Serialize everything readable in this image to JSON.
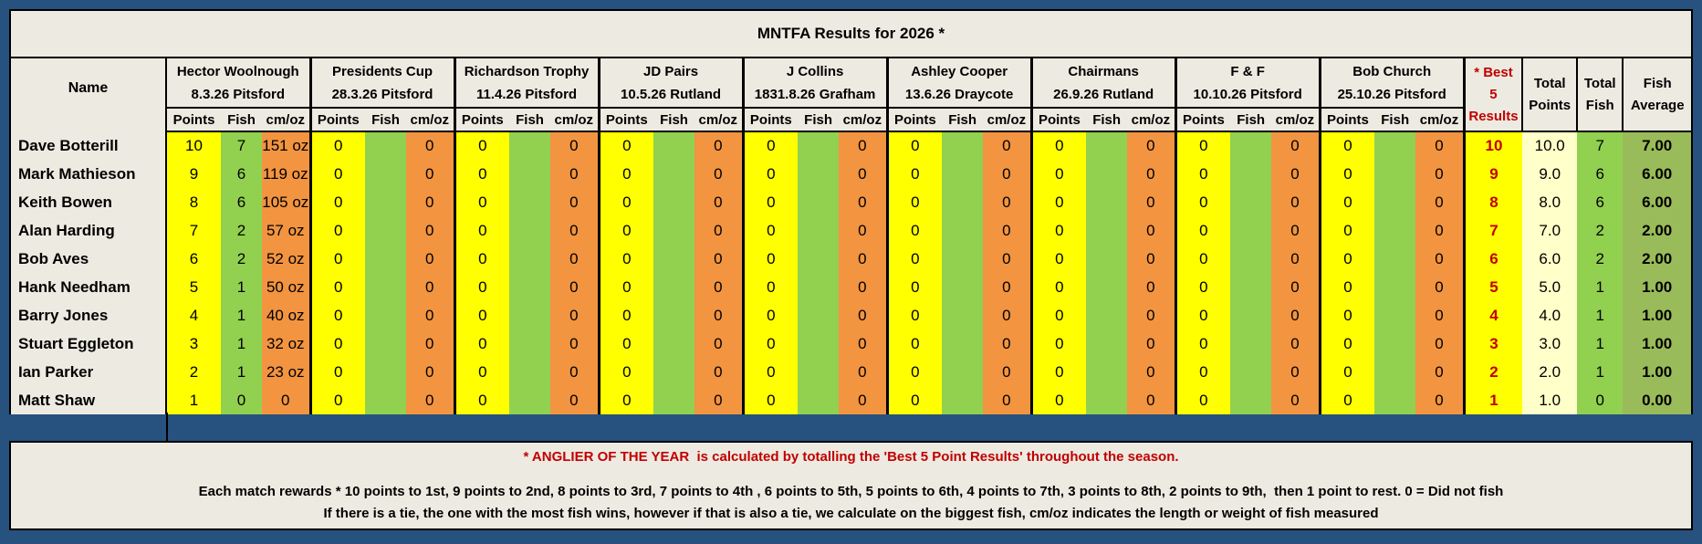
{
  "title": "MNTFA Results for 2026 *",
  "colors": {
    "frame_blue": "#27517F",
    "panel_beige": "#EDEAE1",
    "points_yellow": "#FFFF00",
    "fish_green": "#92D050",
    "cmoz_orange": "#F29440",
    "best_red_text": "#C00000",
    "total_points_pale_yellow": "#FFFFC9",
    "fish_average_olive": "#9ABB59"
  },
  "table": {
    "name_header": "Name",
    "sub_headers": [
      "Points",
      "Fish",
      "cm/oz"
    ],
    "events": [
      {
        "name": "Hector Woolnough",
        "date_venue": "8.3.26 Pitsford"
      },
      {
        "name": "Presidents Cup",
        "date_venue": "28.3.26 Pitsford"
      },
      {
        "name": "Richardson Trophy",
        "date_venue": "11.4.26 Pitsford"
      },
      {
        "name": "JD Pairs",
        "date_venue": "10.5.26 Rutland"
      },
      {
        "name": "J Collins",
        "date_venue": "1831.8.26 Grafham"
      },
      {
        "name": "Ashley Cooper",
        "date_venue": "13.6.26 Draycote"
      },
      {
        "name": "Chairmans",
        "date_venue": "26.9.26 Rutland"
      },
      {
        "name": "F & F",
        "date_venue": "10.10.26 Pitsford"
      },
      {
        "name": "Bob Church",
        "date_venue": "25.10.26 Pitsford"
      }
    ],
    "summary_headers": {
      "best": [
        "* Best",
        "5",
        "Results"
      ],
      "total_points": [
        "Total",
        "Points"
      ],
      "total_fish": [
        "Total",
        "Fish"
      ],
      "fish_average": [
        "Fish",
        "Average"
      ]
    },
    "rows": [
      {
        "name": "Dave Botterill",
        "events": [
          [
            "10",
            "7",
            "151 oz"
          ],
          [
            "0",
            "",
            "0"
          ],
          [
            "0",
            "",
            "0"
          ],
          [
            "0",
            "",
            "0"
          ],
          [
            "0",
            "",
            "0"
          ],
          [
            "0",
            "",
            "0"
          ],
          [
            "0",
            "",
            "0"
          ],
          [
            "0",
            "",
            "0"
          ],
          [
            "0",
            "",
            "0"
          ]
        ],
        "best": "10",
        "total_points": "10.0",
        "total_fish": "7",
        "fish_average": "7.00"
      },
      {
        "name": "Mark Mathieson",
        "events": [
          [
            "9",
            "6",
            "119 oz"
          ],
          [
            "0",
            "",
            "0"
          ],
          [
            "0",
            "",
            "0"
          ],
          [
            "0",
            "",
            "0"
          ],
          [
            "0",
            "",
            "0"
          ],
          [
            "0",
            "",
            "0"
          ],
          [
            "0",
            "",
            "0"
          ],
          [
            "0",
            "",
            "0"
          ],
          [
            "0",
            "",
            "0"
          ]
        ],
        "best": "9",
        "total_points": "9.0",
        "total_fish": "6",
        "fish_average": "6.00"
      },
      {
        "name": "Keith Bowen",
        "events": [
          [
            "8",
            "6",
            "105 oz"
          ],
          [
            "0",
            "",
            "0"
          ],
          [
            "0",
            "",
            "0"
          ],
          [
            "0",
            "",
            "0"
          ],
          [
            "0",
            "",
            "0"
          ],
          [
            "0",
            "",
            "0"
          ],
          [
            "0",
            "",
            "0"
          ],
          [
            "0",
            "",
            "0"
          ],
          [
            "0",
            "",
            "0"
          ]
        ],
        "best": "8",
        "total_points": "8.0",
        "total_fish": "6",
        "fish_average": "6.00"
      },
      {
        "name": "Alan Harding",
        "events": [
          [
            "7",
            "2",
            "57 oz"
          ],
          [
            "0",
            "",
            "0"
          ],
          [
            "0",
            "",
            "0"
          ],
          [
            "0",
            "",
            "0"
          ],
          [
            "0",
            "",
            "0"
          ],
          [
            "0",
            "",
            "0"
          ],
          [
            "0",
            "",
            "0"
          ],
          [
            "0",
            "",
            "0"
          ],
          [
            "0",
            "",
            "0"
          ]
        ],
        "best": "7",
        "total_points": "7.0",
        "total_fish": "2",
        "fish_average": "2.00"
      },
      {
        "name": "Bob Aves",
        "events": [
          [
            "6",
            "2",
            "52 oz"
          ],
          [
            "0",
            "",
            "0"
          ],
          [
            "0",
            "",
            "0"
          ],
          [
            "0",
            "",
            "0"
          ],
          [
            "0",
            "",
            "0"
          ],
          [
            "0",
            "",
            "0"
          ],
          [
            "0",
            "",
            "0"
          ],
          [
            "0",
            "",
            "0"
          ],
          [
            "0",
            "",
            "0"
          ]
        ],
        "best": "6",
        "total_points": "6.0",
        "total_fish": "2",
        "fish_average": "2.00"
      },
      {
        "name": "Hank Needham",
        "events": [
          [
            "5",
            "1",
            "50 oz"
          ],
          [
            "0",
            "",
            "0"
          ],
          [
            "0",
            "",
            "0"
          ],
          [
            "0",
            "",
            "0"
          ],
          [
            "0",
            "",
            "0"
          ],
          [
            "0",
            "",
            "0"
          ],
          [
            "0",
            "",
            "0"
          ],
          [
            "0",
            "",
            "0"
          ],
          [
            "0",
            "",
            "0"
          ]
        ],
        "best": "5",
        "total_points": "5.0",
        "total_fish": "1",
        "fish_average": "1.00"
      },
      {
        "name": "Barry Jones",
        "events": [
          [
            "4",
            "1",
            "40 oz"
          ],
          [
            "0",
            "",
            "0"
          ],
          [
            "0",
            "",
            "0"
          ],
          [
            "0",
            "",
            "0"
          ],
          [
            "0",
            "",
            "0"
          ],
          [
            "0",
            "",
            "0"
          ],
          [
            "0",
            "",
            "0"
          ],
          [
            "0",
            "",
            "0"
          ],
          [
            "0",
            "",
            "0"
          ]
        ],
        "best": "4",
        "total_points": "4.0",
        "total_fish": "1",
        "fish_average": "1.00"
      },
      {
        "name": "Stuart Eggleton",
        "events": [
          [
            "3",
            "1",
            "32 oz"
          ],
          [
            "0",
            "",
            "0"
          ],
          [
            "0",
            "",
            "0"
          ],
          [
            "0",
            "",
            "0"
          ],
          [
            "0",
            "",
            "0"
          ],
          [
            "0",
            "",
            "0"
          ],
          [
            "0",
            "",
            "0"
          ],
          [
            "0",
            "",
            "0"
          ],
          [
            "0",
            "",
            "0"
          ]
        ],
        "best": "3",
        "total_points": "3.0",
        "total_fish": "1",
        "fish_average": "1.00"
      },
      {
        "name": "Ian Parker",
        "events": [
          [
            "2",
            "1",
            "23 oz"
          ],
          [
            "0",
            "",
            "0"
          ],
          [
            "0",
            "",
            "0"
          ],
          [
            "0",
            "",
            "0"
          ],
          [
            "0",
            "",
            "0"
          ],
          [
            "0",
            "",
            "0"
          ],
          [
            "0",
            "",
            "0"
          ],
          [
            "0",
            "",
            "0"
          ],
          [
            "0",
            "",
            "0"
          ]
        ],
        "best": "2",
        "total_points": "2.0",
        "total_fish": "1",
        "fish_average": "1.00"
      },
      {
        "name": "Matt Shaw",
        "events": [
          [
            "1",
            "0",
            "0"
          ],
          [
            "0",
            "",
            "0"
          ],
          [
            "0",
            "",
            "0"
          ],
          [
            "0",
            "",
            "0"
          ],
          [
            "0",
            "",
            "0"
          ],
          [
            "0",
            "",
            "0"
          ],
          [
            "0",
            "",
            "0"
          ],
          [
            "0",
            "",
            "0"
          ],
          [
            "0",
            "",
            "0"
          ]
        ],
        "best": "1",
        "total_points": "1.0",
        "total_fish": "0",
        "fish_average": "0.00"
      }
    ]
  },
  "footer": {
    "line1": "* ANGLIER OF THE YEAR  is calculated by totalling the 'Best 5 Point Results' throughout the season.",
    "line2": "Each match rewards * 10 points to 1st, 9 points to 2nd, 8 points to 3rd, 7 points to 4th , 6 points to 5th, 5 points to 6th, 4 points to 7th, 3 points to 8th, 2 points to 9th,  then 1 point to rest. 0 = Did not fish",
    "line3": "If there is a tie, the one with the most fish wins, however if that is also a tie, we calculate on the biggest fish, cm/oz indicates the length or weight of fish measured"
  }
}
